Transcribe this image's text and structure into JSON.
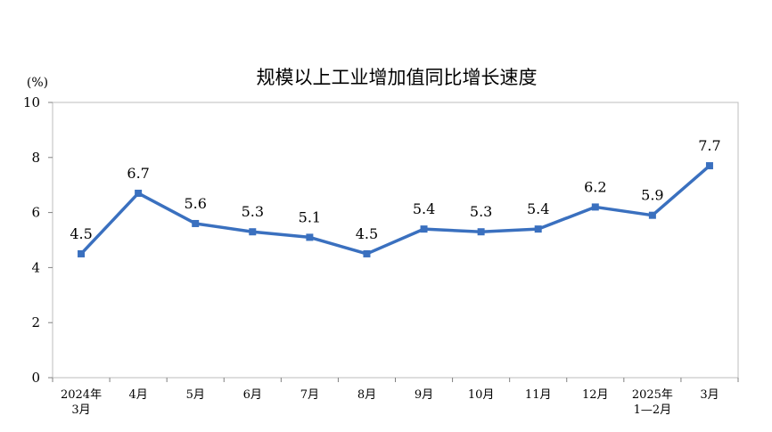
{
  "chart_data": {
    "type": "line",
    "title": "规模以上工业增加值同比增长速度",
    "ylabel": "(%)",
    "ylim": [
      0,
      10
    ],
    "yticks": [
      0,
      2,
      4,
      6,
      8,
      10
    ],
    "categories": [
      [
        "2024年",
        "3月"
      ],
      [
        "4月"
      ],
      [
        "5月"
      ],
      [
        "6月"
      ],
      [
        "7月"
      ],
      [
        "8月"
      ],
      [
        "9月"
      ],
      [
        "10月"
      ],
      [
        "11月"
      ],
      [
        "12月"
      ],
      [
        "2025年",
        "1—2月"
      ],
      [
        "3月"
      ]
    ],
    "values": [
      4.5,
      6.7,
      5.6,
      5.3,
      5.1,
      4.5,
      5.4,
      5.3,
      5.4,
      6.2,
      5.9,
      7.7
    ],
    "data_labels": [
      "4.5",
      "6.7",
      "5.6",
      "5.3",
      "5.1",
      "4.5",
      "5.4",
      "5.3",
      "5.4",
      "6.2",
      "5.9",
      "7.7"
    ],
    "line_color": "#3a70bf",
    "grid": false,
    "legend": "none"
  }
}
